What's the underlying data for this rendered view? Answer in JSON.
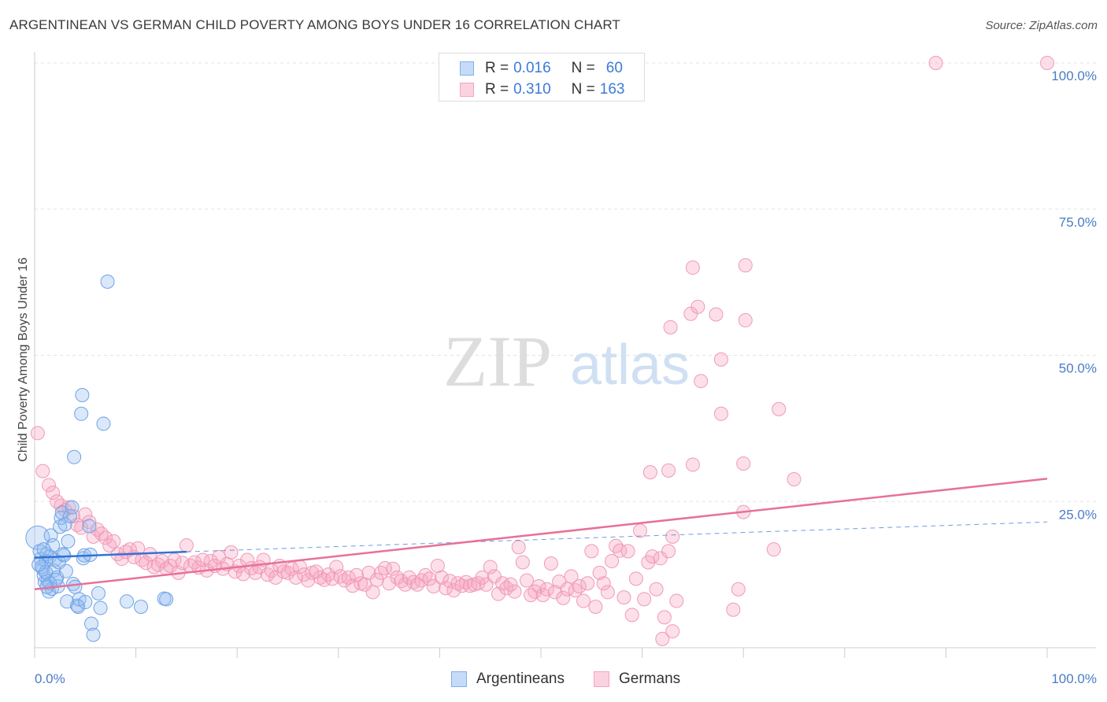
{
  "header": {
    "title": "ARGENTINEAN VS GERMAN CHILD POVERTY AMONG BOYS UNDER 16 CORRELATION CHART",
    "source": "Source: ZipAtlas.com"
  },
  "watermark": {
    "zip": "ZIP",
    "atlas": "atlas"
  },
  "legend": {
    "rows": [
      {
        "r_label": "R =",
        "r_value": "0.016",
        "n_label": "N =",
        "n_value": "60",
        "color": "#7fb0ee"
      },
      {
        "r_label": "R =",
        "r_value": "0.310",
        "n_label": "N =",
        "n_value": "163",
        "color": "#f5a3bf"
      }
    ]
  },
  "bottom_legend": {
    "argentineans": "Argentineans",
    "germans": "Germans"
  },
  "colors": {
    "blue": "#6fa3e6",
    "blue_line": "#3272d6",
    "pink": "#f09ab8",
    "pink_line": "#e8709a",
    "tick_text": "#4a7cc7"
  },
  "chart_data": {
    "type": "scatter",
    "title": "ARGENTINEAN VS GERMAN CHILD POVERTY AMONG BOYS UNDER 16 CORRELATION CHART",
    "xlabel": "",
    "ylabel": "Child Poverty Among Boys Under 16",
    "xlim": [
      0,
      100
    ],
    "ylim": [
      0,
      102
    ],
    "x_tick_labels": [
      "0.0%",
      "100.0%"
    ],
    "y_ticks": [
      {
        "value": 25,
        "label": "25.0%"
      },
      {
        "value": 50,
        "label": "50.0%"
      },
      {
        "value": 75,
        "label": "75.0%"
      },
      {
        "value": 100,
        "label": "100.0%"
      }
    ],
    "grid": true,
    "legend_position": "top-center",
    "series": [
      {
        "name": "Argentineans",
        "trend": {
          "x0": 0,
          "y0": 15.4,
          "x1": 15,
          "y1": 16.4,
          "dashed_to_x": 100,
          "dashed_y1": 21.5
        },
        "points": [
          [
            0.3,
            18.8
          ],
          [
            0.5,
            16.5
          ],
          [
            0.6,
            15.2
          ],
          [
            0.8,
            13.5
          ],
          [
            0.9,
            12.4
          ],
          [
            1.0,
            11.2
          ],
          [
            1.1,
            14.8
          ],
          [
            1.2,
            16.0
          ],
          [
            1.3,
            11.4
          ],
          [
            1.4,
            9.6
          ],
          [
            1.5,
            15.6
          ],
          [
            1.6,
            19.2
          ],
          [
            1.7,
            10.1
          ],
          [
            1.8,
            17.5
          ],
          [
            1.9,
            13.2
          ],
          [
            2.0,
            15.0
          ],
          [
            2.2,
            12.0
          ],
          [
            2.3,
            10.5
          ],
          [
            2.4,
            14.6
          ],
          [
            2.5,
            20.7
          ],
          [
            2.6,
            22.2
          ],
          [
            2.7,
            23.1
          ],
          [
            2.8,
            16.0
          ],
          [
            2.9,
            15.8
          ],
          [
            3.0,
            21.1
          ],
          [
            3.1,
            13.1
          ],
          [
            3.2,
            7.9
          ],
          [
            3.3,
            18.2
          ],
          [
            3.5,
            22.5
          ],
          [
            3.7,
            24.0
          ],
          [
            3.8,
            10.9
          ],
          [
            3.9,
            32.6
          ],
          [
            4.0,
            10.4
          ],
          [
            4.2,
            7.2
          ],
          [
            4.3,
            7.0
          ],
          [
            4.4,
            8.3
          ],
          [
            4.6,
            40.0
          ],
          [
            4.7,
            43.2
          ],
          [
            4.8,
            15.3
          ],
          [
            4.9,
            15.8
          ],
          [
            5.0,
            7.8
          ],
          [
            5.4,
            20.8
          ],
          [
            5.5,
            15.9
          ],
          [
            5.6,
            4.1
          ],
          [
            5.8,
            2.2
          ],
          [
            6.3,
            9.3
          ],
          [
            6.5,
            6.8
          ],
          [
            6.8,
            38.3
          ],
          [
            7.2,
            62.6
          ],
          [
            9.1,
            7.9
          ],
          [
            10.5,
            7.0
          ],
          [
            12.8,
            8.4
          ],
          [
            13.0,
            8.3
          ],
          [
            1.5,
            11.0
          ],
          [
            0.7,
            13.8
          ],
          [
            2.1,
            11.6
          ],
          [
            1.1,
            12.9
          ],
          [
            0.4,
            14.2
          ],
          [
            0.9,
            16.8
          ],
          [
            1.2,
            10.4
          ]
        ]
      },
      {
        "name": "Germans",
        "trend": {
          "x0": 0,
          "y0": 10.0,
          "x1": 100,
          "y1": 28.9
        },
        "points": [
          [
            0.3,
            36.7
          ],
          [
            0.8,
            30.2
          ],
          [
            1.4,
            27.8
          ],
          [
            1.8,
            26.5
          ],
          [
            2.2,
            25.0
          ],
          [
            2.6,
            24.3
          ],
          [
            3.0,
            23.5
          ],
          [
            3.4,
            24.0
          ],
          [
            3.8,
            22.5
          ],
          [
            4.2,
            21.0
          ],
          [
            4.6,
            20.5
          ],
          [
            5.0,
            22.8
          ],
          [
            5.4,
            21.5
          ],
          [
            5.8,
            19.0
          ],
          [
            6.2,
            20.2
          ],
          [
            6.6,
            19.5
          ],
          [
            7.0,
            18.8
          ],
          [
            7.4,
            17.5
          ],
          [
            7.8,
            18.2
          ],
          [
            8.2,
            16.0
          ],
          [
            8.6,
            15.2
          ],
          [
            9.0,
            16.4
          ],
          [
            9.4,
            16.8
          ],
          [
            9.8,
            15.5
          ],
          [
            10.2,
            17.0
          ],
          [
            10.6,
            15.0
          ],
          [
            11.0,
            14.5
          ],
          [
            11.4,
            16.0
          ],
          [
            11.8,
            13.8
          ],
          [
            12.2,
            14.2
          ],
          [
            12.6,
            14.8
          ],
          [
            13.0,
            13.5
          ],
          [
            13.4,
            14.0
          ],
          [
            13.8,
            15.0
          ],
          [
            14.2,
            12.8
          ],
          [
            14.6,
            14.5
          ],
          [
            15.0,
            17.5
          ],
          [
            15.4,
            14.0
          ],
          [
            15.8,
            14.6
          ],
          [
            16.2,
            13.7
          ],
          [
            16.6,
            15.0
          ],
          [
            17.0,
            13.2
          ],
          [
            17.4,
            14.8
          ],
          [
            17.8,
            14.0
          ],
          [
            18.2,
            15.5
          ],
          [
            18.6,
            13.5
          ],
          [
            19.0,
            14.3
          ],
          [
            19.4,
            16.3
          ],
          [
            19.8,
            13.0
          ],
          [
            20.2,
            14.0
          ],
          [
            20.6,
            12.6
          ],
          [
            21.0,
            15.0
          ],
          [
            21.4,
            13.6
          ],
          [
            21.8,
            12.8
          ],
          [
            22.2,
            13.8
          ],
          [
            22.6,
            15.0
          ],
          [
            23.0,
            12.5
          ],
          [
            23.4,
            13.2
          ],
          [
            23.8,
            12.0
          ],
          [
            24.2,
            14.0
          ],
          [
            24.6,
            13.0
          ],
          [
            25.0,
            12.8
          ],
          [
            25.4,
            13.5
          ],
          [
            25.8,
            12.0
          ],
          [
            26.2,
            13.8
          ],
          [
            26.6,
            12.5
          ],
          [
            27.0,
            11.5
          ],
          [
            27.4,
            12.8
          ],
          [
            27.8,
            13.0
          ],
          [
            28.2,
            12.0
          ],
          [
            28.6,
            11.6
          ],
          [
            29.0,
            12.5
          ],
          [
            29.4,
            11.8
          ],
          [
            29.8,
            13.8
          ],
          [
            30.2,
            12.2
          ],
          [
            30.6,
            11.5
          ],
          [
            31.0,
            12.0
          ],
          [
            31.4,
            10.6
          ],
          [
            31.8,
            12.4
          ],
          [
            32.2,
            11.0
          ],
          [
            32.6,
            10.8
          ],
          [
            33.0,
            12.8
          ],
          [
            33.4,
            9.5
          ],
          [
            33.8,
            11.6
          ],
          [
            34.2,
            12.8
          ],
          [
            34.6,
            13.6
          ],
          [
            35.0,
            11.0
          ],
          [
            35.4,
            13.5
          ],
          [
            35.8,
            12.0
          ],
          [
            36.2,
            11.4
          ],
          [
            36.6,
            10.8
          ],
          [
            37.0,
            12.0
          ],
          [
            37.4,
            11.2
          ],
          [
            37.8,
            10.8
          ],
          [
            38.2,
            11.5
          ],
          [
            38.6,
            12.4
          ],
          [
            39.0,
            11.8
          ],
          [
            39.4,
            10.5
          ],
          [
            39.8,
            14.0
          ],
          [
            40.2,
            12.0
          ],
          [
            40.6,
            10.2
          ],
          [
            41.0,
            11.4
          ],
          [
            41.4,
            9.8
          ],
          [
            41.8,
            11.0
          ],
          [
            42.2,
            10.6
          ],
          [
            42.6,
            11.2
          ],
          [
            43.0,
            10.6
          ],
          [
            43.4,
            10.8
          ],
          [
            43.8,
            11.0
          ],
          [
            44.2,
            12.0
          ],
          [
            44.6,
            10.8
          ],
          [
            45.0,
            13.8
          ],
          [
            45.4,
            12.2
          ],
          [
            45.8,
            9.2
          ],
          [
            46.2,
            11.0
          ],
          [
            46.6,
            10.2
          ],
          [
            47.0,
            10.8
          ],
          [
            47.4,
            9.6
          ],
          [
            47.8,
            17.2
          ],
          [
            48.2,
            14.6
          ],
          [
            48.6,
            11.5
          ],
          [
            49.0,
            9.0
          ],
          [
            49.4,
            9.6
          ],
          [
            49.8,
            10.5
          ],
          [
            50.2,
            9.0
          ],
          [
            50.6,
            10.0
          ],
          [
            51.0,
            14.4
          ],
          [
            51.4,
            9.5
          ],
          [
            51.8,
            11.3
          ],
          [
            52.2,
            8.5
          ],
          [
            52.6,
            10.0
          ],
          [
            53.0,
            12.2
          ],
          [
            53.4,
            9.8
          ],
          [
            53.8,
            10.5
          ],
          [
            54.2,
            8.0
          ],
          [
            54.6,
            11.0
          ],
          [
            55.0,
            16.5
          ],
          [
            55.4,
            7.0
          ],
          [
            55.8,
            12.8
          ],
          [
            56.2,
            11.0
          ],
          [
            56.6,
            9.5
          ],
          [
            57.0,
            14.8
          ],
          [
            57.4,
            17.4
          ],
          [
            57.8,
            16.6
          ],
          [
            58.2,
            8.6
          ],
          [
            58.6,
            16.5
          ],
          [
            59.0,
            5.6
          ],
          [
            59.4,
            11.8
          ],
          [
            59.8,
            20.0
          ],
          [
            60.2,
            8.3
          ],
          [
            60.6,
            14.6
          ],
          [
            61.0,
            15.6
          ],
          [
            61.4,
            10.0
          ],
          [
            61.8,
            15.3
          ],
          [
            62.2,
            5.2
          ],
          [
            62.6,
            16.5
          ],
          [
            63.0,
            19.0
          ],
          [
            63.4,
            8.0
          ],
          [
            69.0,
            6.5
          ],
          [
            65.0,
            65.0
          ],
          [
            70.2,
            65.4
          ],
          [
            62.8,
            54.8
          ],
          [
            64.8,
            57.1
          ],
          [
            67.3,
            57.0
          ],
          [
            75.0,
            28.8
          ],
          [
            70.2,
            56.0
          ],
          [
            65.5,
            58.3
          ],
          [
            67.8,
            49.3
          ],
          [
            73.5,
            40.8
          ],
          [
            65.8,
            45.6
          ],
          [
            70.0,
            31.5
          ],
          [
            65.0,
            31.3
          ],
          [
            67.8,
            40.0
          ],
          [
            62.6,
            30.3
          ],
          [
            69.5,
            10.0
          ],
          [
            73.0,
            16.8
          ],
          [
            60.8,
            30.0
          ],
          [
            70.0,
            23.2
          ],
          [
            63.0,
            2.8
          ],
          [
            62.0,
            1.5
          ],
          [
            89.0,
            100
          ],
          [
            100,
            100
          ]
        ]
      }
    ]
  }
}
